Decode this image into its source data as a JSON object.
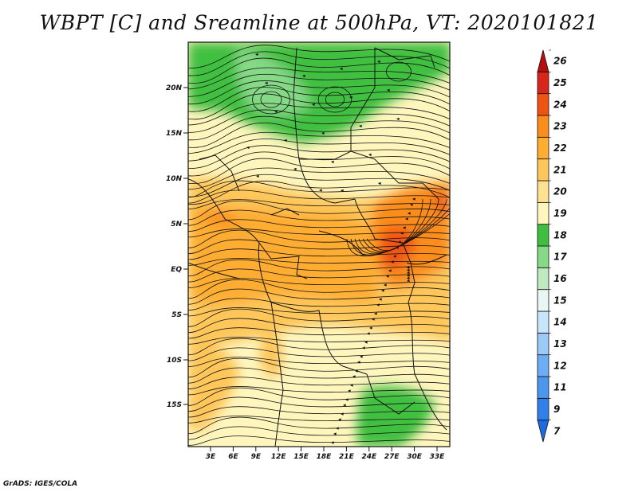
{
  "title": "WBPT [C] and Sreamline at 500hPa, VT: 2020101821",
  "footer": "GrADS: IGES/COLA",
  "map": {
    "lat_labels": [
      "20N",
      "15N",
      "10N",
      "5N",
      "EQ",
      "5S",
      "10S",
      "15S"
    ],
    "lon_labels": [
      "3E",
      "6E",
      "9E",
      "12E",
      "15E",
      "18E",
      "21E",
      "24E",
      "27E",
      "30E",
      "33E"
    ]
  },
  "colorbar": {
    "labels": [
      "7",
      "9",
      "11",
      "12",
      "13",
      "14",
      "15",
      "16",
      "17",
      "18",
      "19",
      "20",
      "21",
      "22",
      "23",
      "24",
      "25",
      "26"
    ],
    "colors": [
      "#1e6be0",
      "#2f80e8",
      "#4c97ee",
      "#6cadf3",
      "#9bc9f8",
      "#c9e5fc",
      "#e8f7f4",
      "#bfeabf",
      "#86d986",
      "#3fbf3f",
      "#fff6be",
      "#ffe291",
      "#ffc65a",
      "#ffad33",
      "#fb8d1c",
      "#ef5412",
      "#d9261d",
      "#b80e0e"
    ]
  }
}
